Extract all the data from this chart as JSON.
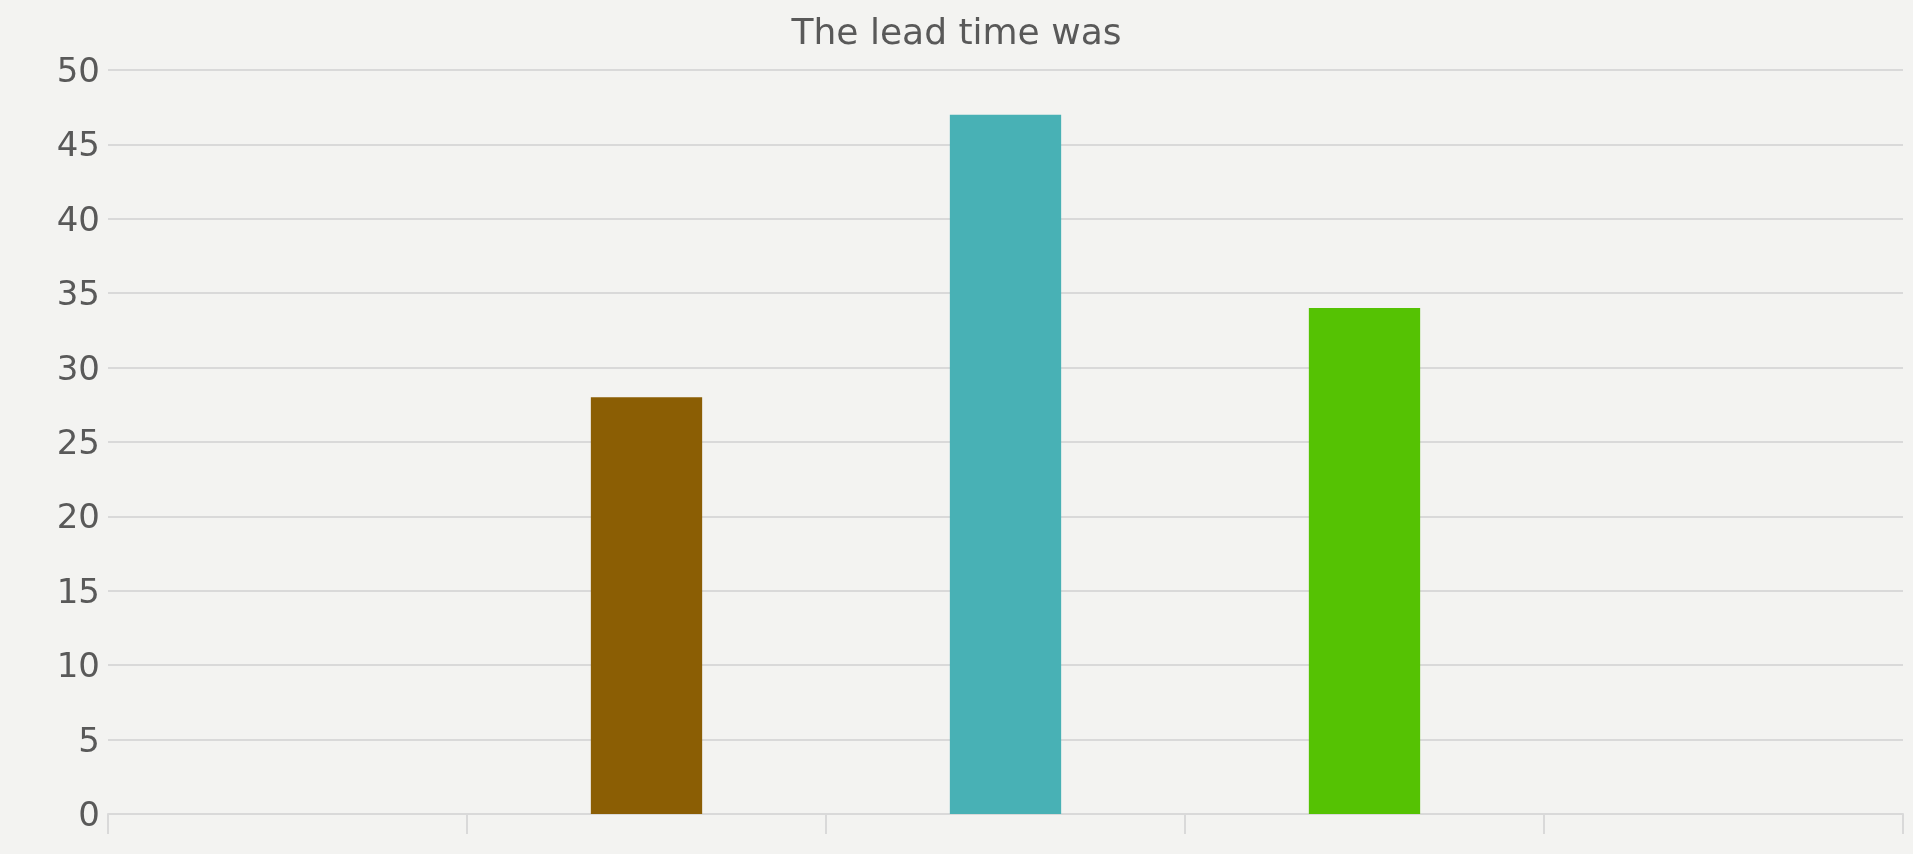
{
  "chart_data": {
    "type": "bar",
    "title": "The lead time was",
    "categories": [
      null,
      null,
      null,
      null,
      null
    ],
    "values": [
      null,
      28,
      47,
      34,
      null
    ],
    "colors": [
      "#8b5e04",
      "#8b5e04",
      "#48b1b5",
      "#55c203",
      "#55c203"
    ],
    "ylim": [
      0,
      50
    ],
    "yticks": [
      0,
      5,
      10,
      15,
      20,
      25,
      30,
      35,
      40,
      45,
      50
    ],
    "grid": "y"
  }
}
